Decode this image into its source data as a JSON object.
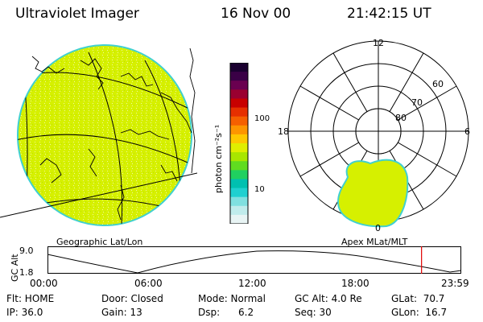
{
  "header": {
    "instrument": "Ultraviolet Imager",
    "date": "16 Nov 00",
    "time": "21:42:15 UT"
  },
  "colors": {
    "aurora_fill": "#d6f000",
    "aurora_edge": "#40d0d0",
    "timeline_marker": "#e00000"
  },
  "colorbar": {
    "unit_label": "photon cm⁻²s⁻¹",
    "tick_100": "100",
    "tick_10": "10",
    "colors_top_to_bottom": [
      "#1a0030",
      "#3a0046",
      "#6a0050",
      "#9a0030",
      "#c80000",
      "#e63000",
      "#f56000",
      "#fd9500",
      "#fec800",
      "#e0ee00",
      "#a8e600",
      "#60dc20",
      "#20d060",
      "#00c0b0",
      "#20d0d0",
      "#80e0e0",
      "#c0ecec",
      "#e8f4f4"
    ]
  },
  "polar": {
    "mlt_top": "12",
    "mlt_left": "18",
    "mlt_right": "6",
    "mlt_bottom": "0",
    "lat_60": "60",
    "lat_70": "70",
    "lat_80": "80"
  },
  "panel_labels": {
    "left": "Geographic Lat/Lon",
    "right": "Apex MLat/MLT"
  },
  "timeline": {
    "axis_label": "GC Alt",
    "y_max": "9.0",
    "y_min": "1.8",
    "ticks": [
      "00:00",
      "06:00",
      "12:00",
      "18:00",
      "23:59"
    ],
    "marker_time_fraction": 0.904
  },
  "info": {
    "flt": "Flt: HOME",
    "ip": "IP: 36.0",
    "door": "Door: Closed",
    "gain": "Gain: 13",
    "mode": "Mode: Normal",
    "dsp": "Dsp:      6.2",
    "gcalt": "GC Alt: 4.0 Re",
    "seq": "Seq: 30",
    "glat": "GLat:  70.7",
    "glon": "GLon:  16.7"
  }
}
